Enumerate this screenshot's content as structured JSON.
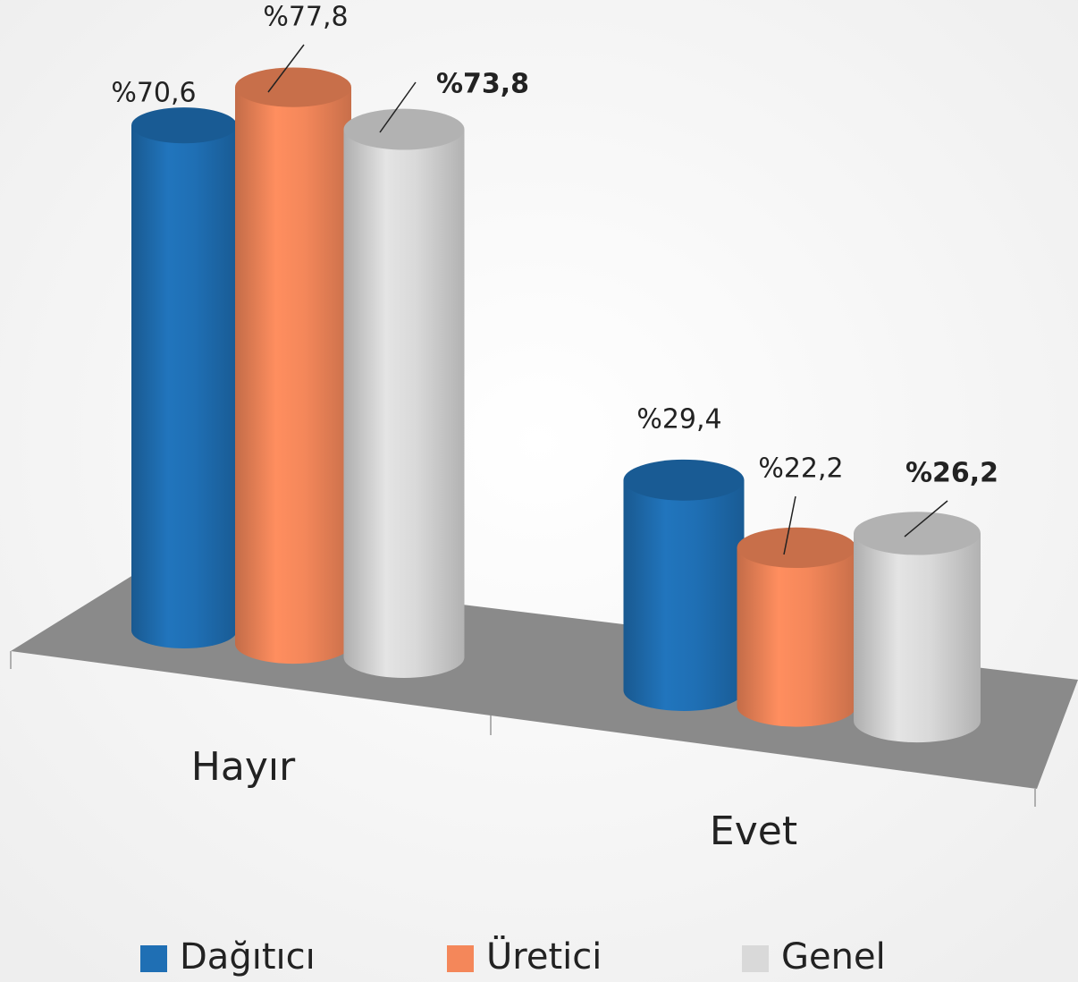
{
  "chart_data": {
    "type": "bar3d",
    "categories": [
      "Hayır",
      "Evet"
    ],
    "series": [
      {
        "name": "Dağıtıcı",
        "color": "#1f6fb4",
        "values": [
          70.6,
          29.4
        ],
        "value_labels": [
          "%70,6",
          "%29,4"
        ]
      },
      {
        "name": "Üretici",
        "color": "#f4875a",
        "values": [
          77.8,
          22.2
        ],
        "value_labels": [
          "%77,8",
          "%22,2"
        ]
      },
      {
        "name": "Genel",
        "color": "#d9d9d9",
        "values": [
          73.8,
          26.2
        ],
        "value_labels": [
          "%73,8",
          "%26,2"
        ]
      }
    ]
  }
}
